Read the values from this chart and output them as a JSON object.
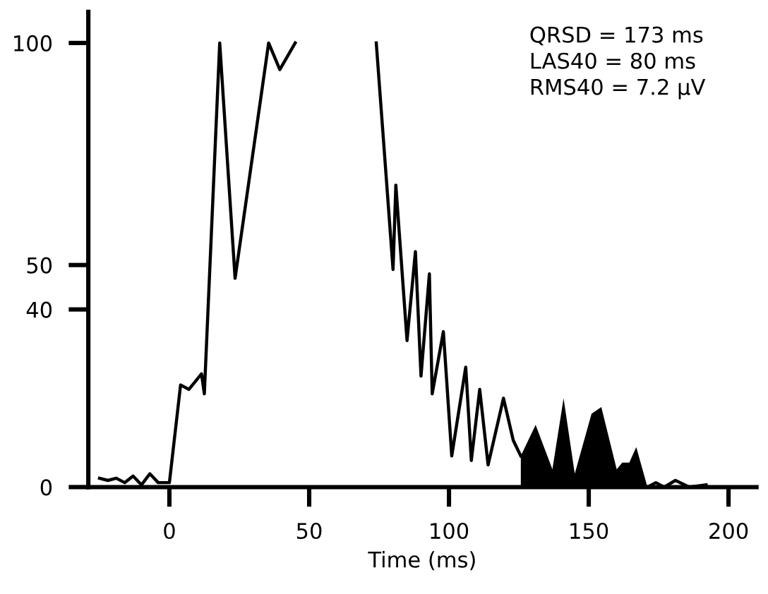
{
  "chart_data": {
    "type": "line",
    "xlabel": "Time (ms)",
    "annotations": [
      "QRSD = 173 ms",
      "LAS40 = 80 ms",
      "RMS40 = 7.2 µV"
    ],
    "xlim": [
      -29,
      210
    ],
    "ylim": [
      0,
      107
    ],
    "xticks": [
      0,
      50,
      100,
      150,
      200
    ],
    "yticks": [
      0,
      40,
      50,
      100
    ],
    "grid": false,
    "legend": false,
    "marker": "none",
    "line_style": "solid",
    "series": [
      {
        "color": "#000000",
        "x": [
          -25,
          -22,
          -19,
          -16,
          -13,
          -10,
          -7,
          -4,
          0,
          4,
          7,
          11.5,
          12.5,
          18,
          23.5,
          35.5,
          39.5,
          45,
          60,
          74,
          80,
          81,
          85,
          88,
          90,
          93,
          94,
          98,
          101,
          106,
          108,
          111,
          114,
          119.5,
          123,
          125.7,
          148,
          171,
          174,
          177,
          181,
          186,
          192
        ],
        "values": [
          2,
          1.5,
          2,
          1,
          2.5,
          0.5,
          3,
          1,
          1,
          23,
          22,
          25.5,
          21,
          100,
          47,
          100,
          94,
          100,
          null,
          100,
          49,
          68,
          33,
          53,
          25,
          48,
          21,
          35,
          7,
          27,
          6,
          22,
          5,
          20,
          10.5,
          7,
          null,
          0,
          1,
          0,
          1.5,
          0,
          0.5
        ]
      },
      {
        "type": "area",
        "color": "#000000",
        "x": [
          125.7,
          131,
          137,
          141,
          145,
          151,
          154.5,
          160,
          162,
          164.5,
          167,
          171
        ],
        "values": [
          7,
          14,
          4,
          20,
          3,
          16.5,
          18,
          4,
          5.5,
          5.5,
          9,
          0
        ]
      }
    ]
  }
}
